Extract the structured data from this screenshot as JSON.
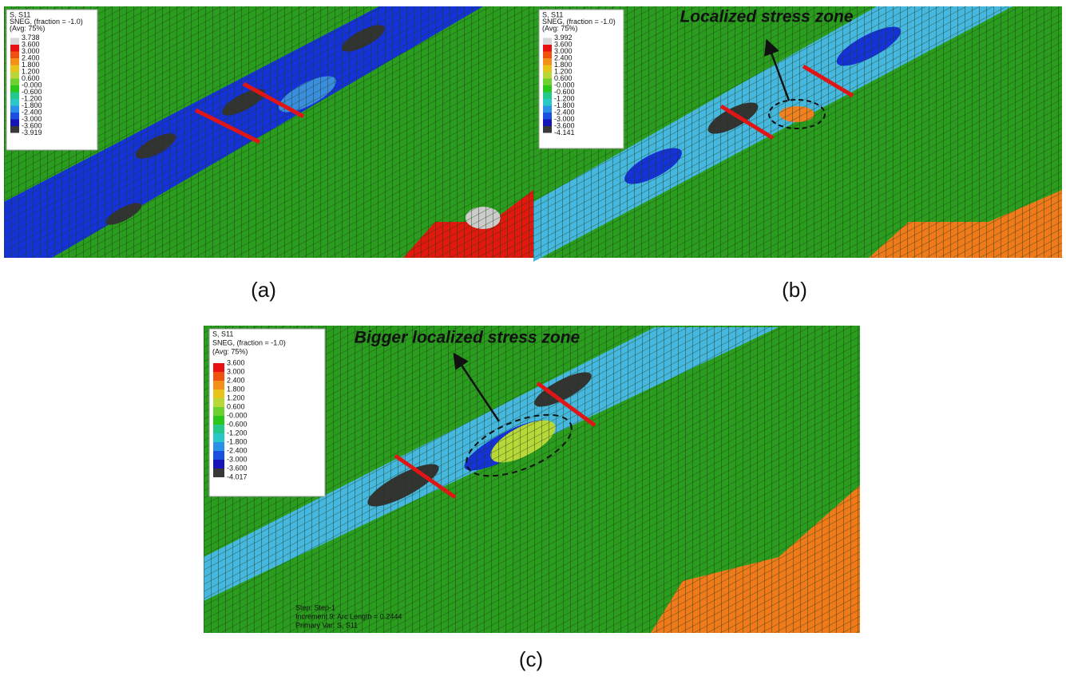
{
  "panels": [
    {
      "label": "(a)",
      "legend": {
        "title": [
          "S, S11",
          "SNEG, (fraction = -1.0)",
          "(Avg: 75%)"
        ],
        "values": [
          "3.738",
          "3.600",
          "3.000",
          "2.400",
          "1.800",
          "1.200",
          "0.600",
          "-0.000",
          "-0.600",
          "-1.200",
          "-1.800",
          "-2.400",
          "-3.000",
          "-3.600",
          "-3.919"
        ]
      }
    },
    {
      "label": "(b)",
      "annotation": "Localized stress zone",
      "legend": {
        "title": [
          "S, S11",
          "SNEG, (fraction = -1.0)",
          "(Avg: 75%)"
        ],
        "values": [
          "3.992",
          "3.600",
          "3.000",
          "2.400",
          "1.800",
          "1.200",
          "0.600",
          "-0.000",
          "-0.600",
          "-1.200",
          "-1.800",
          "-2.400",
          "-3.000",
          "-3.600",
          "-4.141"
        ]
      }
    },
    {
      "label": "(c)",
      "annotation": "Bigger localized stress zone",
      "legend": {
        "title": [
          "S, S11",
          "SNEG, (fraction = -1.0)",
          "(Avg: 75%)"
        ],
        "values": [
          "3.600",
          "3.000",
          "2.400",
          "1.800",
          "1.200",
          "0.600",
          "-0.000",
          "-0.600",
          "-1.200",
          "-1.800",
          "-2.400",
          "-3.000",
          "-3.600",
          "-4.017"
        ]
      },
      "info": [
        "Step: Step-1",
        "Increment    9: Arc Length =  0.2444",
        "Primary Var: S, S11"
      ]
    }
  ]
}
